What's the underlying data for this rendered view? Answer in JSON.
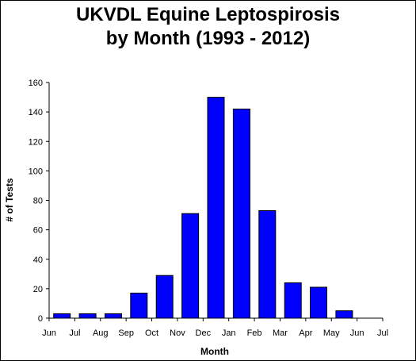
{
  "chart_data": {
    "type": "bar",
    "title_line1": "UKVDL Equine Leptospirosis",
    "title_line2": "by Month (1993 - 2012)",
    "xlabel": "Month",
    "ylabel": "# of Tests",
    "ylim": [
      0,
      160
    ],
    "yticks": [
      "0",
      "20",
      "40",
      "60",
      "80",
      "100",
      "120",
      "140",
      "160"
    ],
    "xticks": [
      "Jun",
      "Jul",
      "Aug",
      "Sep",
      "Oct",
      "Nov",
      "Dec",
      "Jan",
      "Feb",
      "Mar",
      "Apr",
      "May",
      "Jun",
      "Jul"
    ],
    "categories": [
      "Jul",
      "Aug",
      "Sep",
      "Oct",
      "Nov",
      "Dec",
      "Jan",
      "Feb",
      "Mar",
      "Apr",
      "May",
      "Jun"
    ],
    "values": [
      3,
      3,
      3,
      17,
      29,
      71,
      150,
      142,
      73,
      24,
      21,
      5
    ],
    "bar_color": "#0000FF",
    "grid": false,
    "legend": "none"
  }
}
